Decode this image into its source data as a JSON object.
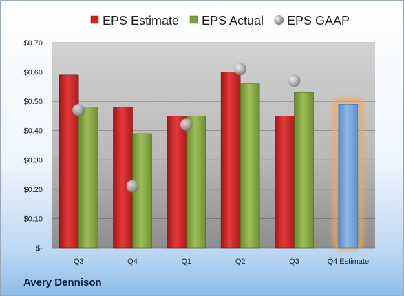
{
  "company": "Avery Dennison",
  "chart_data": {
    "type": "bar",
    "categories": [
      "Q3",
      "Q4",
      "Q1",
      "Q2",
      "Q3",
      "Q4 Estimate"
    ],
    "series": [
      {
        "name": "EPS Estimate",
        "kind": "bar",
        "color": "#cc1f1f",
        "values": [
          0.59,
          0.48,
          0.45,
          0.6,
          0.45,
          null
        ]
      },
      {
        "name": "EPS Actual",
        "kind": "bar",
        "color": "#7f9e3c",
        "values": [
          0.48,
          0.39,
          0.45,
          0.56,
          0.53,
          0.49
        ]
      },
      {
        "name": "EPS GAAP",
        "kind": "scatter",
        "color": "#9a9a9a",
        "values": [
          0.47,
          0.21,
          0.42,
          0.61,
          0.57,
          null
        ]
      }
    ],
    "highlight": {
      "category": "Q4 Estimate",
      "color": "#6e9fd8",
      "glow": "#f6a94b"
    },
    "y_ticks": [
      "$-",
      "$0.10",
      "$0.20",
      "$0.30",
      "$0.40",
      "$0.50",
      "$0.60",
      "$0.70"
    ],
    "ylim": [
      0,
      0.7
    ],
    "grid": true,
    "legend": "top"
  }
}
